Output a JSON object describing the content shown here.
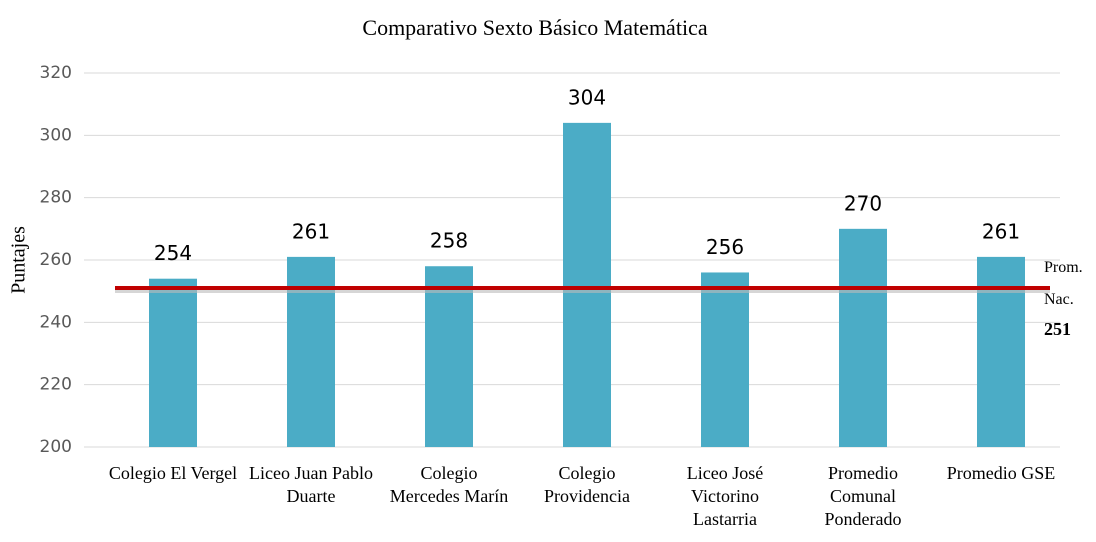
{
  "chart_data": {
    "type": "bar",
    "title": "Comparativo Sexto Básico Matemática",
    "y_label": "Puntajes",
    "categories": [
      "Colegio El Vergel",
      "Liceo Juan Pablo Duarte",
      "Colegio Mercedes Marín",
      "Colegio Providencia",
      "Liceo José Victorino Lastarria",
      "Promedio Comunal Ponderado",
      "Promedio GSE"
    ],
    "values": [
      254,
      261,
      258,
      304,
      256,
      270,
      261
    ],
    "color": "#4bacc6",
    "ylim": [
      200,
      320
    ],
    "yticks": [
      200,
      220,
      240,
      260,
      280,
      300,
      320
    ],
    "grid": true,
    "reference_line": {
      "value": 251,
      "label": "Prom. Nac.",
      "color": "#c00000"
    }
  }
}
